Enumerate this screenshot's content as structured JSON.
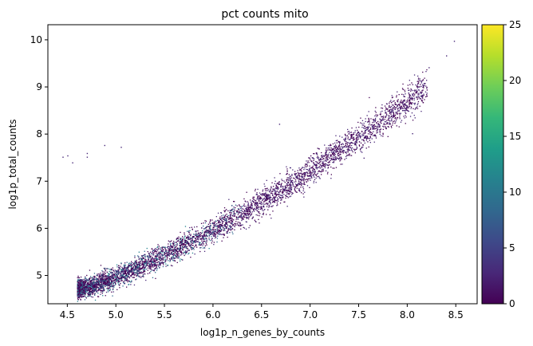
{
  "chart_data": {
    "type": "scatter",
    "title": "pct counts mito",
    "xlabel": "log1p_n_genes_by_counts",
    "ylabel": "log1p_total_counts",
    "xlim": [
      4.3,
      8.72
    ],
    "ylim": [
      4.4,
      10.32
    ],
    "xticks": [
      "4.5",
      "5.0",
      "5.5",
      "6.0",
      "6.5",
      "7.0",
      "7.5",
      "8.0",
      "8.5"
    ],
    "yticks": [
      "5",
      "6",
      "7",
      "8",
      "9",
      "10"
    ],
    "color_variable": "pct_counts_mt",
    "colormap": "viridis",
    "colorbar": {
      "range": [
        0,
        25
      ],
      "ticks": [
        "0",
        "5",
        "10",
        "15",
        "20",
        "25"
      ]
    },
    "trend": {
      "x": [
        4.6,
        4.8,
        5.0,
        5.2,
        5.5,
        5.8,
        6.0,
        6.3,
        6.6,
        6.9,
        7.2,
        7.5,
        7.8,
        8.1,
        8.4,
        8.5
      ],
      "y": [
        4.72,
        4.82,
        4.97,
        5.15,
        5.45,
        5.75,
        5.97,
        6.32,
        6.7,
        7.08,
        7.52,
        7.95,
        8.38,
        8.85,
        9.35,
        9.98
      ]
    },
    "spread": 0.1,
    "outliers": [
      {
        "x": 4.45,
        "y": 7.52
      },
      {
        "x": 4.5,
        "y": 7.55
      },
      {
        "x": 4.55,
        "y": 7.4
      },
      {
        "x": 4.7,
        "y": 7.6
      },
      {
        "x": 4.7,
        "y": 7.52
      },
      {
        "x": 4.88,
        "y": 7.77
      },
      {
        "x": 5.05,
        "y": 7.73
      },
      {
        "x": 6.68,
        "y": 8.22
      },
      {
        "x": 7.55,
        "y": 7.5
      },
      {
        "x": 8.05,
        "y": 8.02
      },
      {
        "x": 8.4,
        "y": 9.67
      },
      {
        "x": 8.48,
        "y": 9.98
      },
      {
        "x": 8.22,
        "y": 9.42
      }
    ]
  }
}
